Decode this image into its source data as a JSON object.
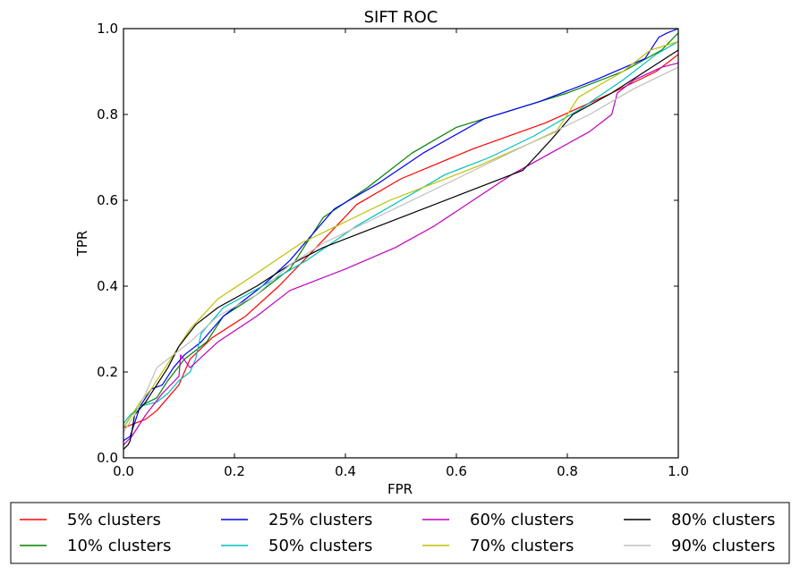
{
  "chart_data": {
    "type": "line",
    "title": "SIFT ROC",
    "xlabel": "FPR",
    "ylabel": "TPR",
    "xlim": [
      0.0,
      1.0
    ],
    "ylim": [
      0.0,
      1.0
    ],
    "xticks": [
      0.0,
      0.2,
      0.4,
      0.6,
      0.8,
      1.0
    ],
    "yticks": [
      0.0,
      0.2,
      0.4,
      0.6,
      0.8,
      1.0
    ],
    "xtick_labels": [
      "0.0",
      "0.2",
      "0.4",
      "0.6",
      "0.8",
      "1.0"
    ],
    "ytick_labels": [
      "0.0",
      "0.2",
      "0.4",
      "0.6",
      "0.8",
      "1.0"
    ],
    "grid": false,
    "legend_position": "below plot, 4 columns",
    "series": [
      {
        "name": "5% clusters",
        "color": "#ff0000",
        "x": [
          0.0,
          0.02,
          0.04,
          0.06,
          0.08,
          0.1,
          0.103,
          0.12,
          0.16,
          0.22,
          0.28,
          0.34,
          0.42,
          0.5,
          0.63,
          0.76,
          0.88,
          0.96,
          1.0
        ],
        "y": [
          0.07,
          0.08,
          0.09,
          0.11,
          0.14,
          0.17,
          0.18,
          0.23,
          0.28,
          0.33,
          0.4,
          0.48,
          0.59,
          0.65,
          0.72,
          0.78,
          0.85,
          0.9,
          0.94
        ]
      },
      {
        "name": "10% clusters",
        "color": "#008000",
        "x": [
          0.0,
          0.015,
          0.03,
          0.06,
          0.08,
          0.11,
          0.15,
          0.18,
          0.24,
          0.3,
          0.36,
          0.44,
          0.52,
          0.6,
          0.7,
          0.8,
          0.9,
          0.97,
          1.0
        ],
        "y": [
          0.07,
          0.1,
          0.12,
          0.14,
          0.18,
          0.23,
          0.27,
          0.33,
          0.38,
          0.44,
          0.56,
          0.63,
          0.71,
          0.77,
          0.81,
          0.85,
          0.9,
          0.95,
          0.99
        ]
      },
      {
        "name": "25% clusters",
        "color": "#0000ff",
        "x": [
          0.0,
          0.012,
          0.03,
          0.05,
          0.07,
          0.09,
          0.11,
          0.14,
          0.18,
          0.25,
          0.3,
          0.38,
          0.46,
          0.54,
          0.65,
          0.75,
          0.85,
          0.94,
          0.965,
          0.98,
          1.0
        ],
        "y": [
          0.04,
          0.05,
          0.12,
          0.16,
          0.17,
          0.21,
          0.24,
          0.27,
          0.33,
          0.4,
          0.46,
          0.58,
          0.64,
          0.71,
          0.79,
          0.83,
          0.88,
          0.93,
          0.98,
          0.99,
          1.0
        ]
      },
      {
        "name": "50% clusters",
        "color": "#00bfbf",
        "x": [
          0.0,
          0.012,
          0.03,
          0.06,
          0.08,
          0.1,
          0.12,
          0.13,
          0.14,
          0.18,
          0.25,
          0.33,
          0.42,
          0.5,
          0.58,
          0.66,
          0.74,
          0.82,
          0.9,
          0.96,
          1.0
        ],
        "y": [
          0.08,
          0.1,
          0.12,
          0.13,
          0.15,
          0.18,
          0.2,
          0.23,
          0.29,
          0.35,
          0.4,
          0.46,
          0.54,
          0.6,
          0.66,
          0.7,
          0.75,
          0.81,
          0.88,
          0.94,
          0.97
        ]
      },
      {
        "name": "60% clusters",
        "color": "#bf00bf",
        "x": [
          0.0,
          0.015,
          0.04,
          0.07,
          0.1,
          0.103,
          0.12,
          0.17,
          0.24,
          0.3,
          0.4,
          0.49,
          0.56,
          0.63,
          0.7,
          0.77,
          0.84,
          0.88,
          0.89,
          0.92,
          0.97,
          1.0
        ],
        "y": [
          0.03,
          0.05,
          0.1,
          0.15,
          0.19,
          0.24,
          0.21,
          0.27,
          0.33,
          0.39,
          0.44,
          0.49,
          0.54,
          0.6,
          0.66,
          0.71,
          0.76,
          0.8,
          0.85,
          0.88,
          0.91,
          0.92
        ]
      },
      {
        "name": "70% clusters",
        "color": "#bfbf00",
        "x": [
          0.0,
          0.01,
          0.03,
          0.05,
          0.08,
          0.12,
          0.17,
          0.24,
          0.32,
          0.4,
          0.48,
          0.56,
          0.64,
          0.71,
          0.78,
          0.82,
          0.86,
          0.9,
          0.95,
          1.0
        ],
        "y": [
          0.07,
          0.09,
          0.13,
          0.16,
          0.22,
          0.3,
          0.37,
          0.43,
          0.5,
          0.55,
          0.6,
          0.64,
          0.68,
          0.72,
          0.76,
          0.84,
          0.87,
          0.9,
          0.95,
          0.97
        ]
      },
      {
        "name": "80% clusters",
        "color": "#000000",
        "x": [
          0.0,
          0.008,
          0.012,
          0.015,
          0.02,
          0.04,
          0.06,
          0.08,
          0.1,
          0.13,
          0.17,
          0.24,
          0.3,
          0.36,
          0.44,
          0.52,
          0.6,
          0.66,
          0.72,
          0.77,
          0.81,
          0.88,
          0.94,
          1.0
        ],
        "y": [
          0.02,
          0.03,
          0.04,
          0.06,
          0.1,
          0.13,
          0.17,
          0.21,
          0.26,
          0.31,
          0.35,
          0.4,
          0.45,
          0.49,
          0.53,
          0.57,
          0.61,
          0.64,
          0.67,
          0.74,
          0.8,
          0.85,
          0.9,
          0.95
        ]
      },
      {
        "name": "90% clusters",
        "color": "#bfbfbf",
        "x": [
          0.0,
          0.02,
          0.04,
          0.06,
          0.08,
          0.12,
          0.17,
          0.24,
          0.3,
          0.36,
          0.44,
          0.52,
          0.6,
          0.68,
          0.76,
          0.84,
          0.92,
          1.0
        ],
        "y": [
          0.06,
          0.1,
          0.15,
          0.21,
          0.23,
          0.27,
          0.33,
          0.38,
          0.45,
          0.5,
          0.55,
          0.6,
          0.65,
          0.7,
          0.75,
          0.8,
          0.86,
          0.91
        ]
      }
    ]
  }
}
